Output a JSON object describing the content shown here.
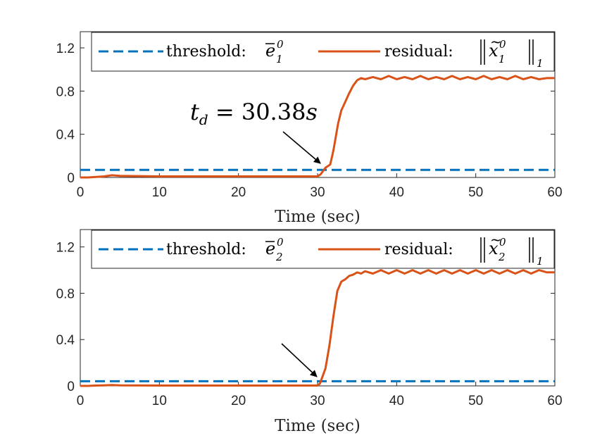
{
  "chart_data": [
    {
      "type": "line",
      "xlabel": "Time (sec)",
      "ylabel": "",
      "xlim": [
        0,
        60
      ],
      "ylim": [
        0,
        1.35
      ],
      "xticks": [
        "0",
        "10",
        "20",
        "30",
        "40",
        "50",
        "60"
      ],
      "yticks": [
        "0",
        "0.4",
        "0.8",
        "1.2"
      ],
      "legend_position": "top",
      "series": [
        {
          "name": "threshold: ē₁⁰",
          "style": "dashed",
          "color": "#0072BD",
          "x": [
            0,
            60
          ],
          "y": [
            0.07,
            0.07
          ]
        },
        {
          "name": "residual: ‖x̃₁⁰‖₁",
          "style": "solid",
          "color": "#D95319",
          "x": [
            0,
            1,
            2,
            3,
            4,
            5,
            10,
            20,
            30,
            30.4,
            31,
            31.6,
            32,
            32.6,
            33,
            33.5,
            34,
            34.5,
            35,
            35.5,
            36,
            37,
            38,
            39,
            40,
            41,
            42,
            43,
            44,
            45,
            46,
            47,
            48,
            49,
            50,
            51,
            52,
            53,
            54,
            55,
            56,
            57,
            58,
            59,
            60
          ],
          "y": [
            0,
            0,
            0.005,
            0.01,
            0.02,
            0.015,
            0.01,
            0.01,
            0.01,
            0.03,
            0.09,
            0.12,
            0.25,
            0.5,
            0.62,
            0.7,
            0.78,
            0.85,
            0.9,
            0.92,
            0.91,
            0.93,
            0.91,
            0.94,
            0.91,
            0.93,
            0.91,
            0.94,
            0.91,
            0.93,
            0.91,
            0.94,
            0.91,
            0.93,
            0.91,
            0.94,
            0.91,
            0.93,
            0.91,
            0.94,
            0.91,
            0.93,
            0.91,
            0.92,
            0.92
          ]
        }
      ],
      "annotation": {
        "text": "t_d = 30.38s",
        "arrow_to_x": 30.38,
        "arrow_to_y": 0.07
      }
    },
    {
      "type": "line",
      "xlabel": "Time (sec)",
      "ylabel": "",
      "xlim": [
        0,
        60
      ],
      "ylim": [
        0,
        1.35
      ],
      "xticks": [
        "0",
        "10",
        "20",
        "30",
        "40",
        "50",
        "60"
      ],
      "yticks": [
        "0",
        "0.4",
        "0.8",
        "1.2"
      ],
      "legend_position": "top",
      "series": [
        {
          "name": "threshold: ē₂⁰",
          "style": "dashed",
          "color": "#0072BD",
          "x": [
            0,
            60
          ],
          "y": [
            0.04,
            0.04
          ]
        },
        {
          "name": "residual: ‖x̃₂⁰‖₁",
          "style": "solid",
          "color": "#D95319",
          "x": [
            0,
            1,
            2,
            3,
            4,
            5,
            10,
            20,
            30,
            30.3,
            31,
            31.5,
            32,
            32.5,
            33,
            33.5,
            34,
            34.5,
            35,
            35.5,
            36,
            37,
            38,
            39,
            40,
            41,
            42,
            43,
            44,
            45,
            46,
            47,
            48,
            49,
            50,
            51,
            52,
            53,
            54,
            55,
            56,
            57,
            58,
            59,
            60
          ],
          "y": [
            0,
            0,
            0.003,
            0.005,
            0.008,
            0.005,
            0.003,
            0.003,
            0.003,
            0.02,
            0.15,
            0.35,
            0.6,
            0.82,
            0.9,
            0.92,
            0.95,
            0.96,
            0.98,
            0.97,
            0.99,
            0.97,
            1.0,
            0.97,
            1.0,
            0.97,
            1.0,
            0.97,
            1.0,
            0.97,
            1.0,
            0.97,
            1.0,
            0.97,
            1.0,
            0.97,
            1.0,
            0.97,
            1.0,
            0.97,
            1.0,
            0.97,
            1.0,
            0.98,
            0.98
          ]
        }
      ],
      "annotation": {
        "text": "",
        "arrow_to_x": 30.3,
        "arrow_to_y": 0.04
      }
    }
  ]
}
